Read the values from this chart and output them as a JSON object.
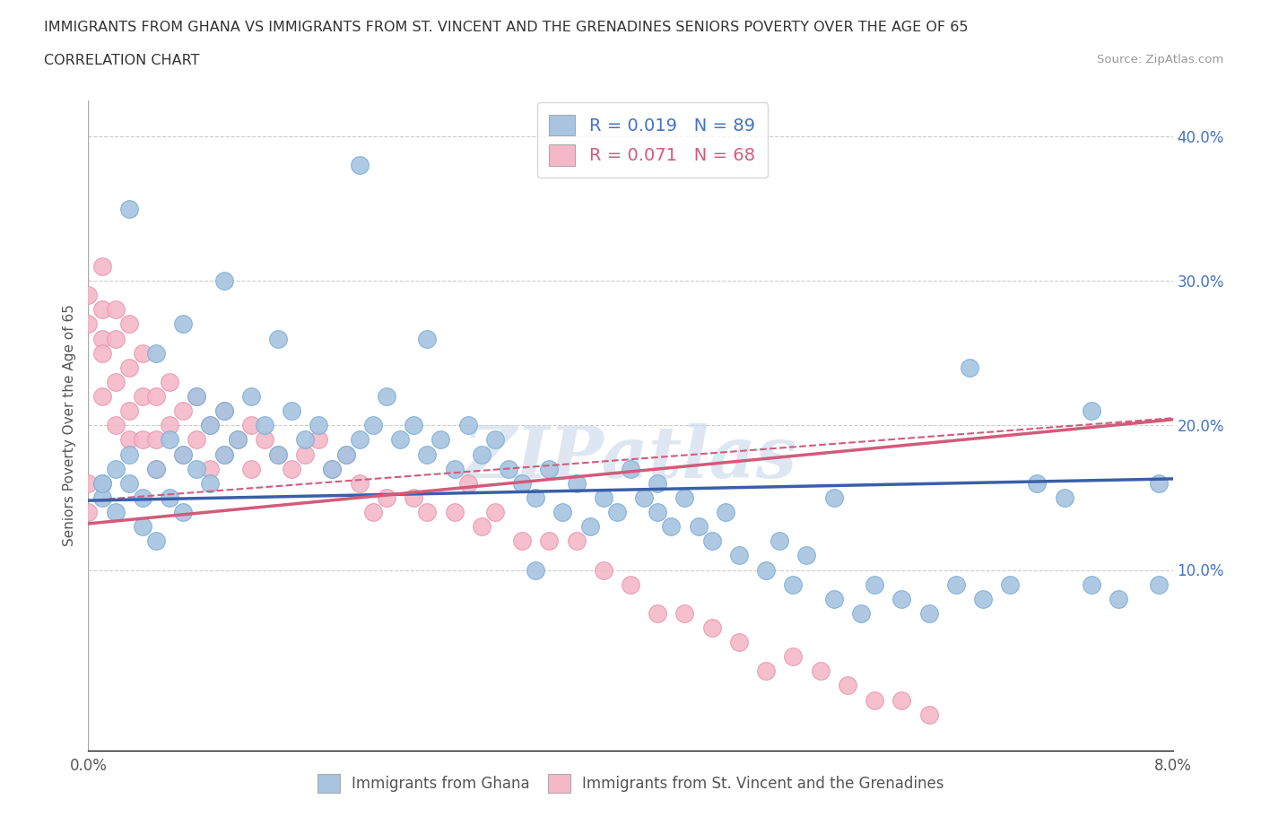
{
  "title_line1": "IMMIGRANTS FROM GHANA VS IMMIGRANTS FROM ST. VINCENT AND THE GRENADINES SENIORS POVERTY OVER THE AGE OF 65",
  "title_line2": "CORRELATION CHART",
  "source_text": "Source: ZipAtlas.com",
  "ylabel": "Seniors Poverty Over the Age of 65",
  "xlim": [
    0.0,
    0.08
  ],
  "ylim": [
    -0.025,
    0.425
  ],
  "xticks": [
    0.0,
    0.01,
    0.02,
    0.03,
    0.04,
    0.05,
    0.06,
    0.07,
    0.08
  ],
  "xtick_labels": [
    "0.0%",
    "",
    "",
    "",
    "",
    "",
    "",
    "",
    "8.0%"
  ],
  "yticks": [
    0.0,
    0.1,
    0.2,
    0.3,
    0.4
  ],
  "ytick_labels": [
    "",
    "10.0%",
    "20.0%",
    "30.0%",
    "40.0%"
  ],
  "ghana_color": "#a8c4e0",
  "svg_color": "#f4b8c8",
  "ghana_edge": "#7aafd4",
  "svg_edge": "#e898b0",
  "ghana_R": 0.019,
  "ghana_N": 89,
  "svg_R": 0.071,
  "svg_N": 68,
  "legend_label1": "Immigrants from Ghana",
  "legend_label2": "Immigrants from St. Vincent and the Grenadines",
  "watermark": "ZIPatlas",
  "ghana_trend_color": "#3a5fa8",
  "svg_trend_color": "#d45a7a",
  "ghana_x": [
    0.001,
    0.001,
    0.002,
    0.002,
    0.003,
    0.003,
    0.004,
    0.004,
    0.005,
    0.005,
    0.006,
    0.006,
    0.007,
    0.007,
    0.008,
    0.008,
    0.009,
    0.009,
    0.01,
    0.01,
    0.011,
    0.012,
    0.013,
    0.014,
    0.015,
    0.016,
    0.017,
    0.018,
    0.019,
    0.02,
    0.021,
    0.022,
    0.023,
    0.024,
    0.025,
    0.026,
    0.027,
    0.028,
    0.029,
    0.03,
    0.031,
    0.032,
    0.033,
    0.034,
    0.035,
    0.036,
    0.037,
    0.038,
    0.039,
    0.04,
    0.041,
    0.042,
    0.043,
    0.044,
    0.045,
    0.046,
    0.047,
    0.048,
    0.05,
    0.051,
    0.052,
    0.053,
    0.055,
    0.057,
    0.058,
    0.06,
    0.062,
    0.064,
    0.066,
    0.068,
    0.07,
    0.072,
    0.074,
    0.076,
    0.001,
    0.003,
    0.005,
    0.007,
    0.01,
    0.014,
    0.02,
    0.025,
    0.033,
    0.042,
    0.055,
    0.065,
    0.074,
    0.079,
    0.079
  ],
  "ghana_y": [
    0.16,
    0.15,
    0.17,
    0.14,
    0.18,
    0.16,
    0.15,
    0.13,
    0.17,
    0.12,
    0.19,
    0.15,
    0.18,
    0.14,
    0.22,
    0.17,
    0.2,
    0.16,
    0.21,
    0.18,
    0.19,
    0.22,
    0.2,
    0.18,
    0.21,
    0.19,
    0.2,
    0.17,
    0.18,
    0.19,
    0.2,
    0.22,
    0.19,
    0.2,
    0.18,
    0.19,
    0.17,
    0.2,
    0.18,
    0.19,
    0.17,
    0.16,
    0.15,
    0.17,
    0.14,
    0.16,
    0.13,
    0.15,
    0.14,
    0.17,
    0.15,
    0.16,
    0.13,
    0.15,
    0.13,
    0.12,
    0.14,
    0.11,
    0.1,
    0.12,
    0.09,
    0.11,
    0.08,
    0.07,
    0.09,
    0.08,
    0.07,
    0.09,
    0.08,
    0.09,
    0.16,
    0.15,
    0.09,
    0.08,
    0.16,
    0.35,
    0.25,
    0.27,
    0.3,
    0.26,
    0.38,
    0.26,
    0.1,
    0.14,
    0.15,
    0.24,
    0.21,
    0.16,
    0.09
  ],
  "svg_x": [
    0.0,
    0.0,
    0.0,
    0.0,
    0.001,
    0.001,
    0.001,
    0.001,
    0.001,
    0.002,
    0.002,
    0.002,
    0.002,
    0.003,
    0.003,
    0.003,
    0.003,
    0.004,
    0.004,
    0.004,
    0.005,
    0.005,
    0.005,
    0.006,
    0.006,
    0.007,
    0.007,
    0.008,
    0.008,
    0.009,
    0.009,
    0.01,
    0.01,
    0.011,
    0.012,
    0.012,
    0.013,
    0.014,
    0.015,
    0.016,
    0.017,
    0.018,
    0.019,
    0.02,
    0.021,
    0.022,
    0.024,
    0.025,
    0.027,
    0.028,
    0.029,
    0.03,
    0.032,
    0.034,
    0.036,
    0.038,
    0.04,
    0.042,
    0.044,
    0.046,
    0.048,
    0.05,
    0.052,
    0.054,
    0.056,
    0.058,
    0.06,
    0.062
  ],
  "svg_y": [
    0.29,
    0.27,
    0.16,
    0.14,
    0.31,
    0.28,
    0.26,
    0.25,
    0.22,
    0.28,
    0.26,
    0.23,
    0.2,
    0.27,
    0.24,
    0.21,
    0.19,
    0.25,
    0.22,
    0.19,
    0.22,
    0.19,
    0.17,
    0.23,
    0.2,
    0.21,
    0.18,
    0.22,
    0.19,
    0.2,
    0.17,
    0.21,
    0.18,
    0.19,
    0.2,
    0.17,
    0.19,
    0.18,
    0.17,
    0.18,
    0.19,
    0.17,
    0.18,
    0.16,
    0.14,
    0.15,
    0.15,
    0.14,
    0.14,
    0.16,
    0.13,
    0.14,
    0.12,
    0.12,
    0.12,
    0.1,
    0.09,
    0.07,
    0.07,
    0.06,
    0.05,
    0.03,
    0.04,
    0.03,
    0.02,
    0.01,
    0.01,
    0.0
  ]
}
